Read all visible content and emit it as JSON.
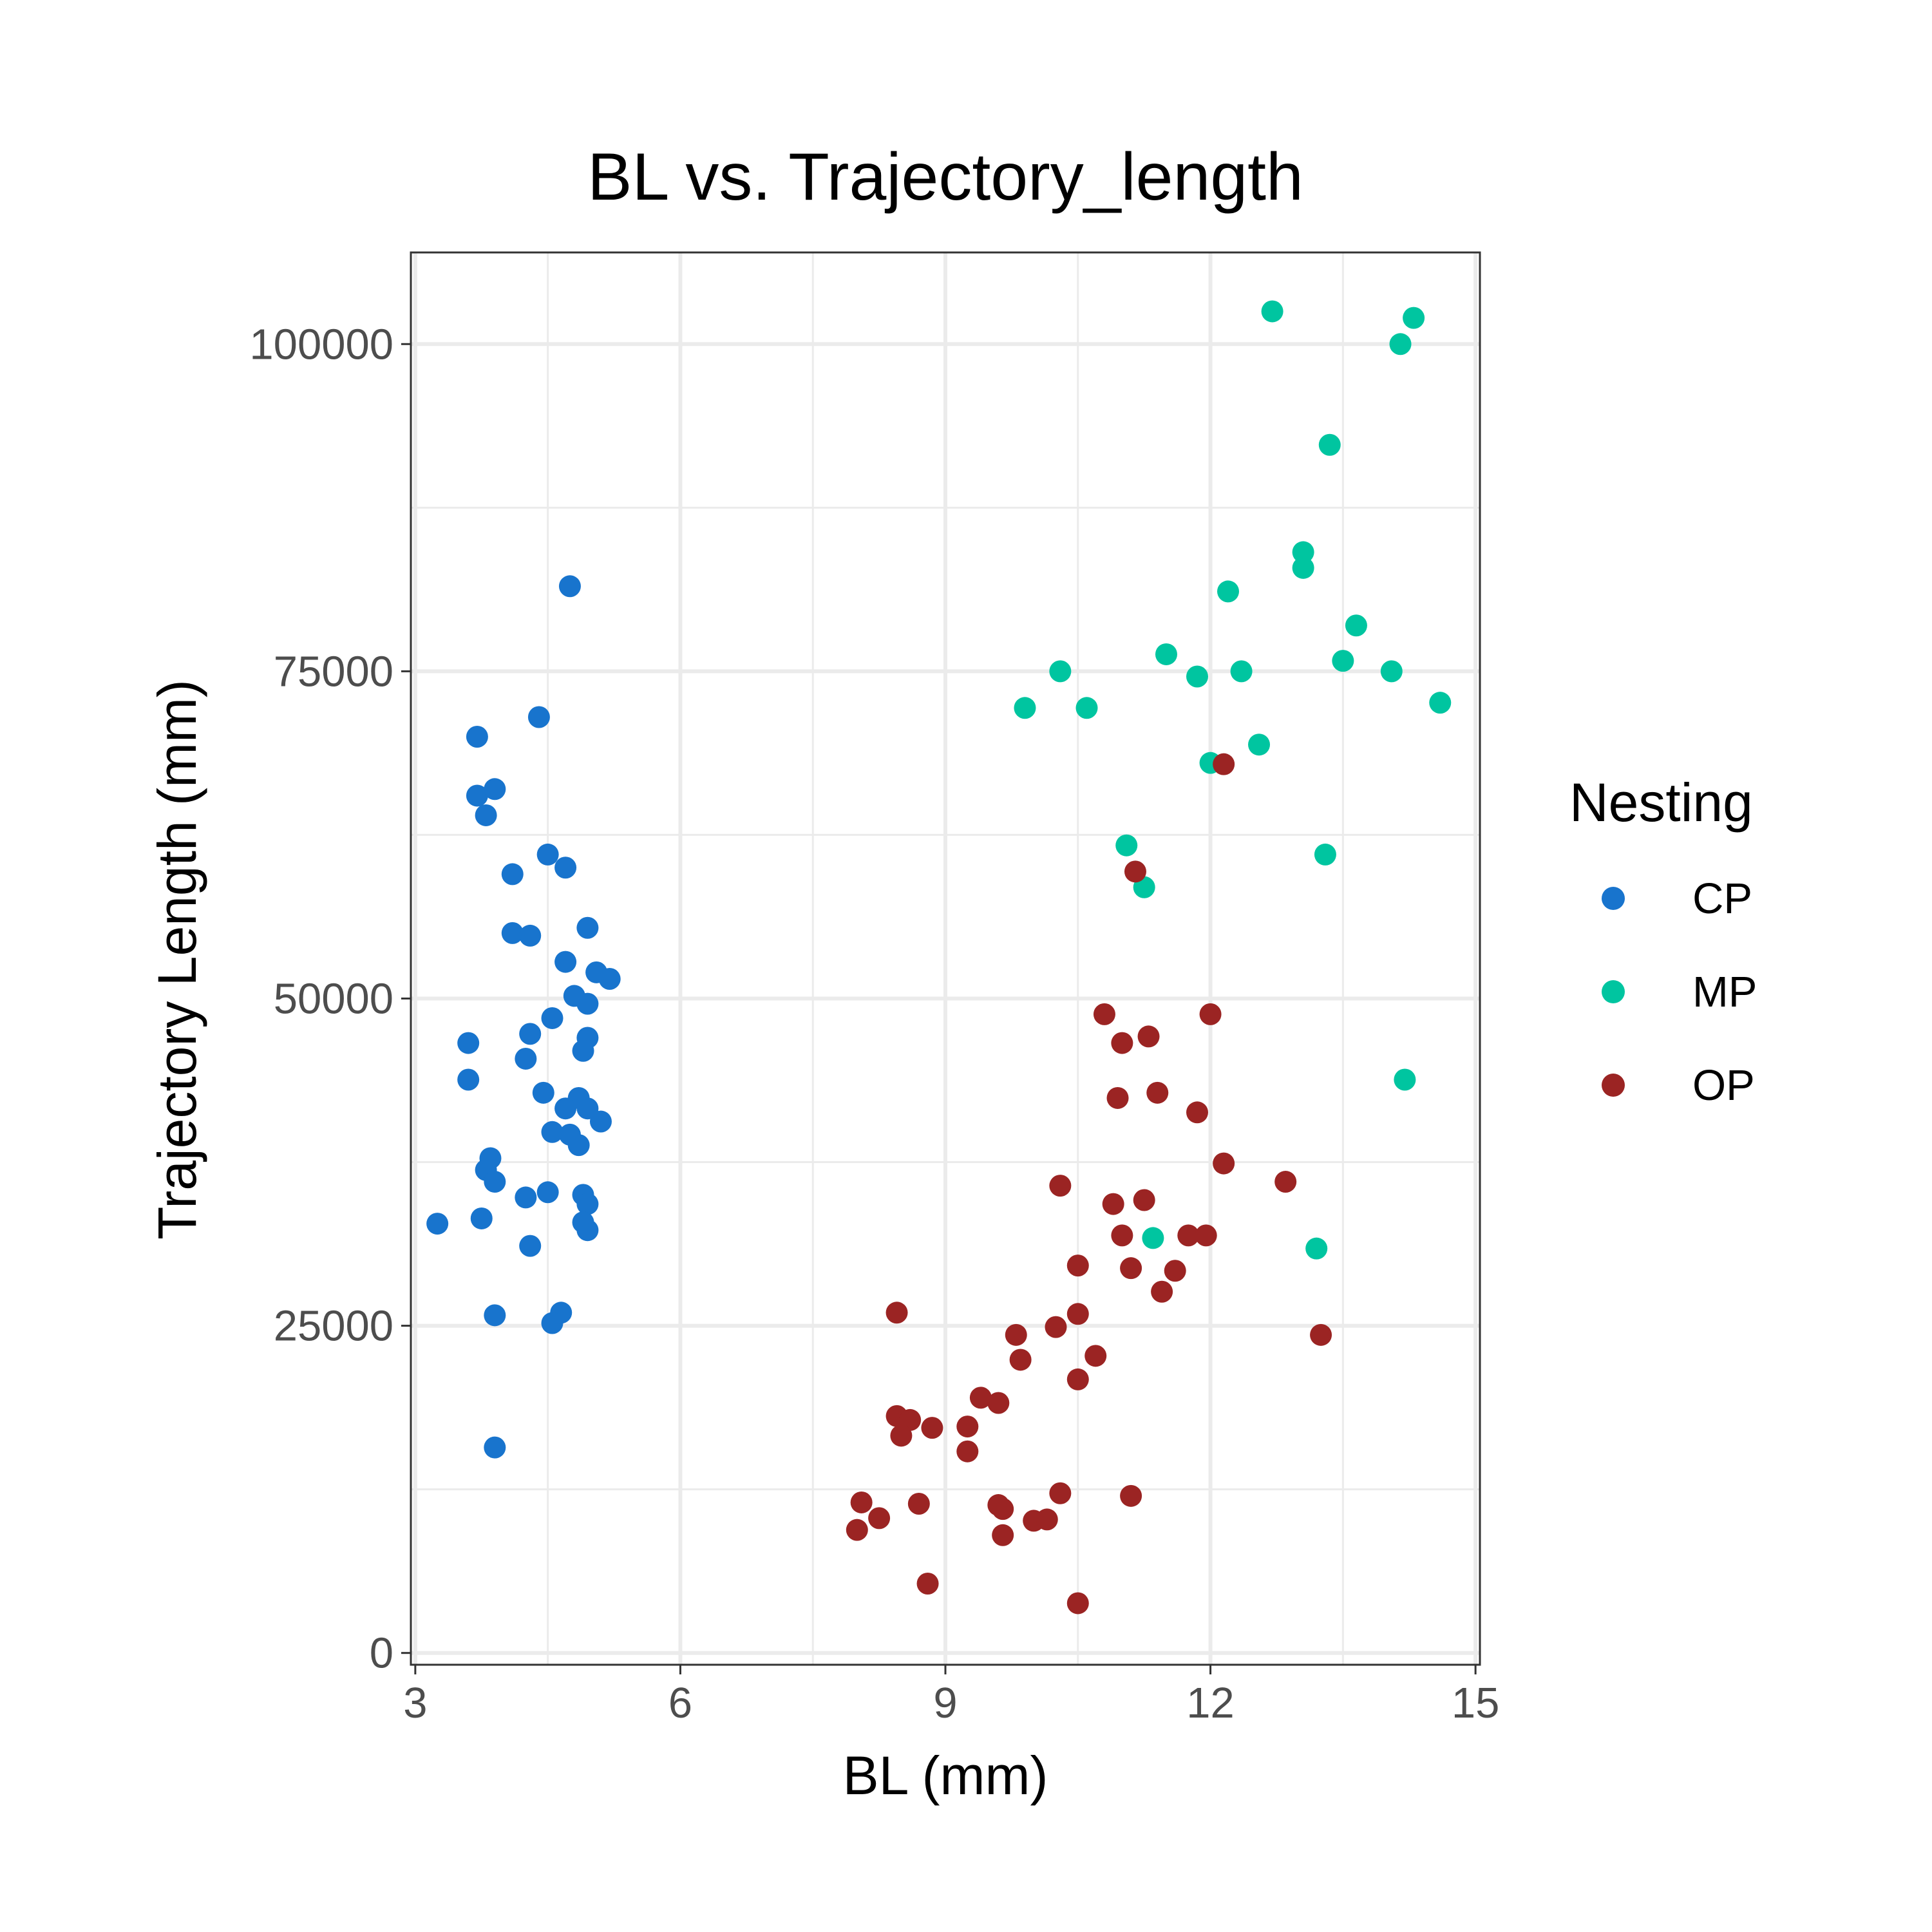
{
  "chart_data": {
    "type": "scatter",
    "title": "BL vs. Trajectory_length",
    "xlabel": "BL (mm)",
    "ylabel": "Trajectory Length (mm)",
    "xlim": [
      2.95,
      15.05
    ],
    "ylim": [
      -900,
      107000
    ],
    "x_ticks": [
      3,
      6,
      9,
      12,
      15
    ],
    "x_minor": [
      4.5,
      7.5,
      10.5,
      13.5
    ],
    "y_ticks": [
      0,
      25000,
      50000,
      75000,
      100000
    ],
    "y_minor": [
      12500,
      37500,
      62500,
      87500
    ],
    "grid": true,
    "legend": {
      "title": "Nesting",
      "position": "right",
      "entries": [
        "CP",
        "MP",
        "OP"
      ]
    },
    "series": [
      {
        "name": "CP",
        "color": "#1874CD",
        "points": [
          [
            4.75,
            81500
          ],
          [
            3.7,
            70000
          ],
          [
            4.4,
            71500
          ],
          [
            3.7,
            65500
          ],
          [
            3.9,
            66000
          ],
          [
            3.8,
            64000
          ],
          [
            4.5,
            61000
          ],
          [
            4.7,
            60000
          ],
          [
            4.1,
            59500
          ],
          [
            4.1,
            55000
          ],
          [
            4.3,
            54800
          ],
          [
            4.95,
            55400
          ],
          [
            4.7,
            52800
          ],
          [
            5.05,
            52000
          ],
          [
            5.2,
            51500
          ],
          [
            4.8,
            50200
          ],
          [
            4.95,
            49600
          ],
          [
            4.55,
            48500
          ],
          [
            4.3,
            47300
          ],
          [
            4.95,
            47000
          ],
          [
            3.6,
            46600
          ],
          [
            4.9,
            46000
          ],
          [
            4.25,
            45400
          ],
          [
            3.6,
            43800
          ],
          [
            4.45,
            42800
          ],
          [
            4.85,
            42400
          ],
          [
            4.7,
            41600
          ],
          [
            4.95,
            41600
          ],
          [
            5.1,
            40600
          ],
          [
            4.55,
            39800
          ],
          [
            4.75,
            39600
          ],
          [
            4.85,
            38800
          ],
          [
            3.85,
            37800
          ],
          [
            3.8,
            36900
          ],
          [
            3.9,
            36000
          ],
          [
            4.5,
            35200
          ],
          [
            4.25,
            34800
          ],
          [
            4.9,
            35000
          ],
          [
            4.95,
            34300
          ],
          [
            3.75,
            33200
          ],
          [
            3.25,
            32800
          ],
          [
            4.9,
            32900
          ],
          [
            4.95,
            32300
          ],
          [
            4.3,
            31100
          ],
          [
            3.9,
            25800
          ],
          [
            4.65,
            26000
          ],
          [
            4.55,
            25200
          ],
          [
            3.9,
            15700
          ]
        ]
      },
      {
        "name": "MP",
        "color": "#00C5A0",
        "points": [
          [
            12.7,
            102500
          ],
          [
            14.3,
            102000
          ],
          [
            14.15,
            100000
          ],
          [
            13.35,
            92300
          ],
          [
            13.05,
            84100
          ],
          [
            13.05,
            82900
          ],
          [
            12.2,
            81100
          ],
          [
            13.65,
            78500
          ],
          [
            11.5,
            76300
          ],
          [
            13.5,
            75800
          ],
          [
            10.3,
            75000
          ],
          [
            12.35,
            75000
          ],
          [
            14.05,
            75000
          ],
          [
            11.85,
            74600
          ],
          [
            9.9,
            72200
          ],
          [
            10.6,
            72200
          ],
          [
            14.6,
            72600
          ],
          [
            12.55,
            69400
          ],
          [
            12.0,
            68000
          ],
          [
            11.05,
            61700
          ],
          [
            13.3,
            61000
          ],
          [
            11.25,
            58500
          ],
          [
            14.2,
            43800
          ],
          [
            11.35,
            31700
          ],
          [
            13.2,
            30900
          ]
        ]
      },
      {
        "name": "OP",
        "color": "#9B2423",
        "points": [
          [
            12.15,
            67900
          ],
          [
            11.15,
            59700
          ],
          [
            10.8,
            48800
          ],
          [
            12.0,
            48800
          ],
          [
            11.3,
            47100
          ],
          [
            11.0,
            46600
          ],
          [
            10.95,
            42400
          ],
          [
            11.4,
            42800
          ],
          [
            11.85,
            41300
          ],
          [
            12.15,
            37400
          ],
          [
            12.85,
            36000
          ],
          [
            10.3,
            35700
          ],
          [
            10.9,
            34300
          ],
          [
            11.25,
            34600
          ],
          [
            11.0,
            31900
          ],
          [
            11.75,
            31900
          ],
          [
            11.95,
            31900
          ],
          [
            10.5,
            29600
          ],
          [
            11.1,
            29400
          ],
          [
            11.6,
            29200
          ],
          [
            11.45,
            27600
          ],
          [
            8.45,
            26000
          ],
          [
            10.5,
            25900
          ],
          [
            10.25,
            24900
          ],
          [
            9.8,
            24300
          ],
          [
            13.25,
            24300
          ],
          [
            10.7,
            22700
          ],
          [
            9.85,
            22400
          ],
          [
            10.5,
            20900
          ],
          [
            9.4,
            19500
          ],
          [
            9.6,
            19100
          ],
          [
            8.45,
            18100
          ],
          [
            8.6,
            17800
          ],
          [
            8.85,
            17200
          ],
          [
            9.25,
            17300
          ],
          [
            8.5,
            16600
          ],
          [
            9.25,
            15400
          ],
          [
            8.05,
            11500
          ],
          [
            8.7,
            11400
          ],
          [
            9.6,
            11300
          ],
          [
            9.65,
            11000
          ],
          [
            10.3,
            12200
          ],
          [
            11.1,
            12000
          ],
          [
            8.25,
            10300
          ],
          [
            10.0,
            10100
          ],
          [
            10.15,
            10200
          ],
          [
            8.0,
            9400
          ],
          [
            9.65,
            9000
          ],
          [
            8.8,
            5300
          ],
          [
            10.5,
            3800
          ]
        ]
      }
    ]
  }
}
